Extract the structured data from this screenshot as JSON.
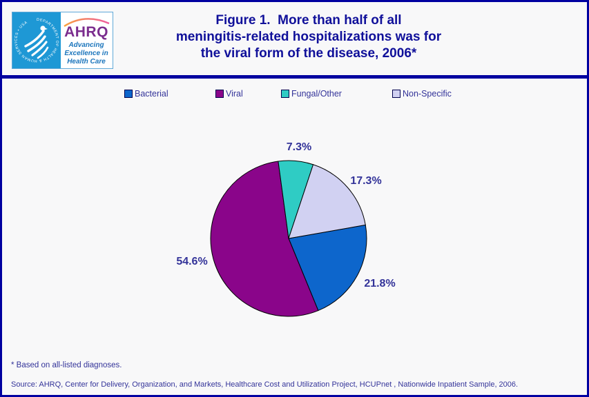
{
  "page": {
    "background": "#F8F8F9",
    "border_color": "#0000A0",
    "divider_color": "#0000A0"
  },
  "header": {
    "logo": {
      "seal_text": "DEPARTMENT OF HEALTH & HUMAN SERVICES • USA",
      "brand": "AHRQ",
      "tagline_lines": [
        "Advancing",
        "Excellence in",
        "Health Care"
      ],
      "brand_color": "#7B2D8E",
      "tagline_color": "#1B75BC",
      "seal_bg_color": "#1E98D5"
    },
    "title_lines": [
      "Figure 1.  More than half of all",
      "meningitis-related hospitalizations was for",
      "the viral form of the disease, 2006*"
    ],
    "title_color": "#10109A"
  },
  "chart_data": {
    "type": "pie",
    "title": "Figure 1. More than half of all meningitis-related hospitalizations was for the viral form of the disease, 2006*",
    "start_angle_deg": 80,
    "direction": "clockwise",
    "outline_color": "#000000",
    "legend_position": "top",
    "label_color": "#333399",
    "slices": [
      {
        "name": "Bacterial",
        "value": 21.8,
        "pct_label": "21.8%",
        "color": "#0D66CC"
      },
      {
        "name": "Viral",
        "value": 54.6,
        "pct_label": "54.6%",
        "color": "#8A058A"
      },
      {
        "name": "Fungal/Other",
        "value": 7.3,
        "pct_label": "7.3%",
        "color": "#2FCCC4"
      },
      {
        "name": "Non-Specific",
        "value": 17.3,
        "pct_label": "17.3%",
        "color": "#D1D1F2"
      }
    ]
  },
  "footer": {
    "footnote": "* Based on all-listed diagnoses.",
    "source": "Source: AHRQ, Center for Delivery, Organization, and Markets, Healthcare Cost and Utilization Project, HCUPnet , Nationwide Inpatient Sample, 2006.",
    "text_color": "#333399"
  }
}
